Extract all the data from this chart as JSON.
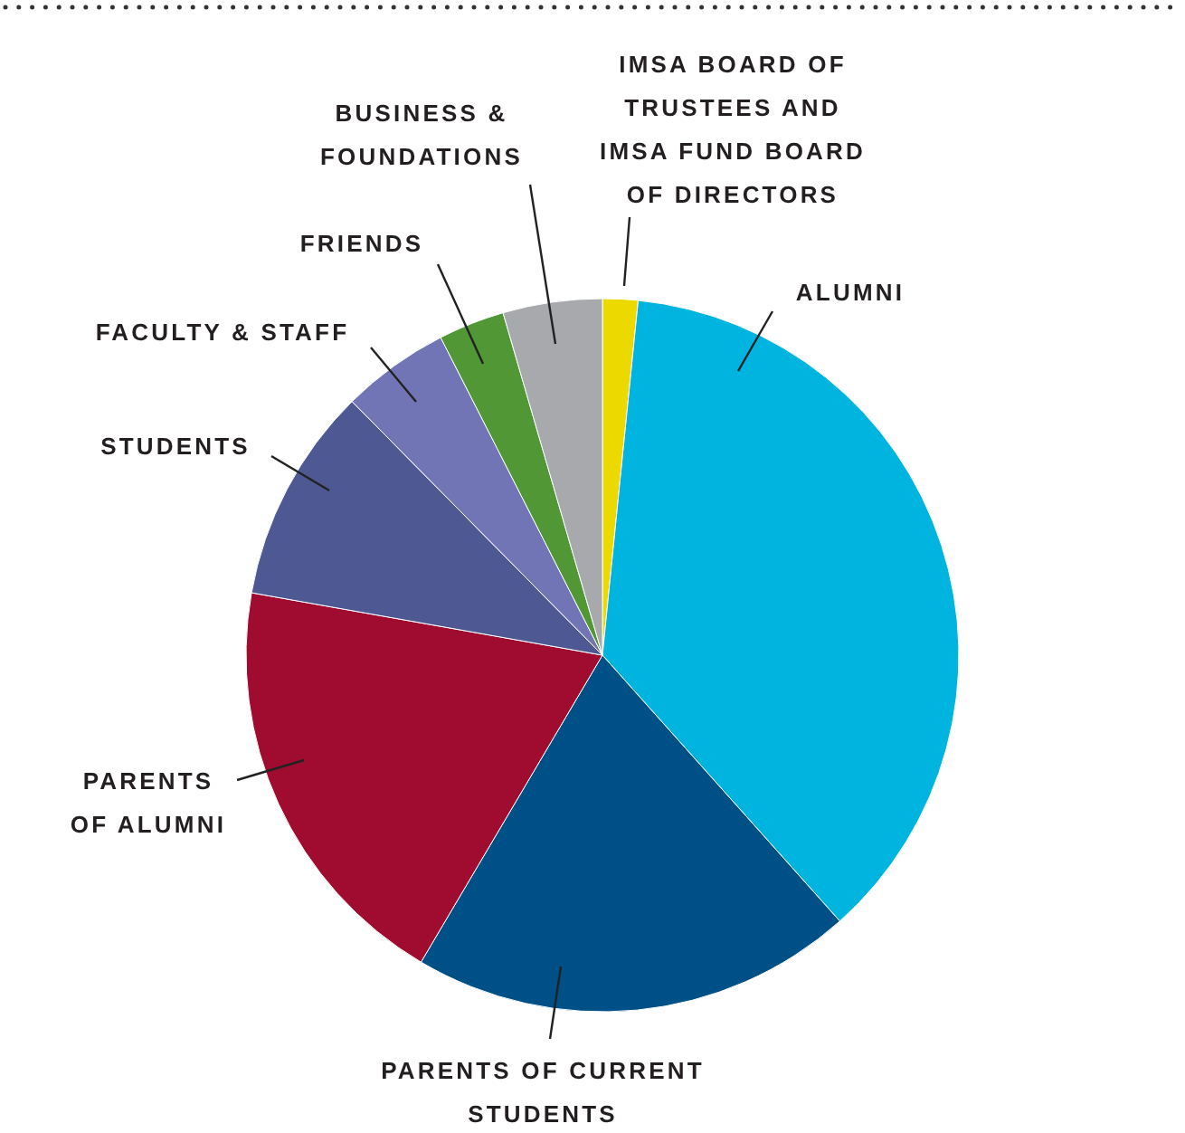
{
  "chart_data": {
    "type": "pie",
    "categories": [
      "IMSA BOARD OF\nTRUSTEES AND\nIMSA FUND BOARD\nOF DIRECTORS",
      "ALUMNI",
      "PARENTS OF CURRENT\nSTUDENTS",
      "PARENTS\nOF ALUMNI",
      "STUDENTS",
      "FACULTY & STAFF",
      "FRIENDS",
      "BUSINESS &\nFOUNDATIONS"
    ],
    "values": [
      1.6,
      36.8,
      20.1,
      19.3,
      9.8,
      4.9,
      3.0,
      4.5
    ],
    "colors": [
      "#ecd900",
      "#00b4e0",
      "#005088",
      "#a00b30",
      "#4e5893",
      "#7275b5",
      "#519735",
      "#a8a9ad"
    ]
  }
}
